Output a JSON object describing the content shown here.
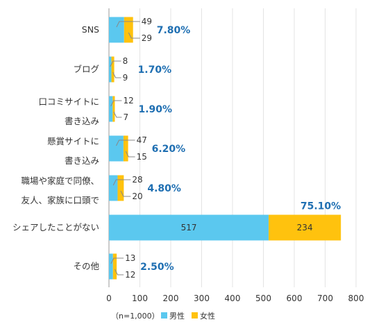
{
  "chart_data": {
    "type": "bar",
    "orientation": "horizontal",
    "stacked": true,
    "categories": [
      [
        "SNS"
      ],
      [
        "ブログ"
      ],
      [
        "口コミサイトに",
        "書き込み"
      ],
      [
        "懸賞サイトに",
        "書き込み"
      ],
      [
        "職場や家庭で同僚、",
        "友人、家族に口頭で"
      ],
      [
        "シェアしたことがない"
      ],
      [
        "その他"
      ]
    ],
    "series": [
      {
        "name": "男性",
        "color": "#5bc8ef",
        "values": [
          49,
          8,
          12,
          47,
          28,
          517,
          13
        ]
      },
      {
        "name": "女性",
        "color": "#ffc20e",
        "values": [
          29,
          9,
          7,
          15,
          20,
          234,
          12
        ]
      }
    ],
    "percentages": [
      "7.80%",
      "1.70%",
      "1.90%",
      "6.20%",
      "4.80%",
      "75.10%",
      "2.50%"
    ],
    "xlim": [
      0,
      800
    ],
    "xticks": [
      0,
      100,
      200,
      300,
      400,
      500,
      600,
      700,
      800
    ],
    "grid": "vertical",
    "note": "（n=1,000）",
    "legend_position": "bottom",
    "pct_color": "#1f6fb2"
  }
}
